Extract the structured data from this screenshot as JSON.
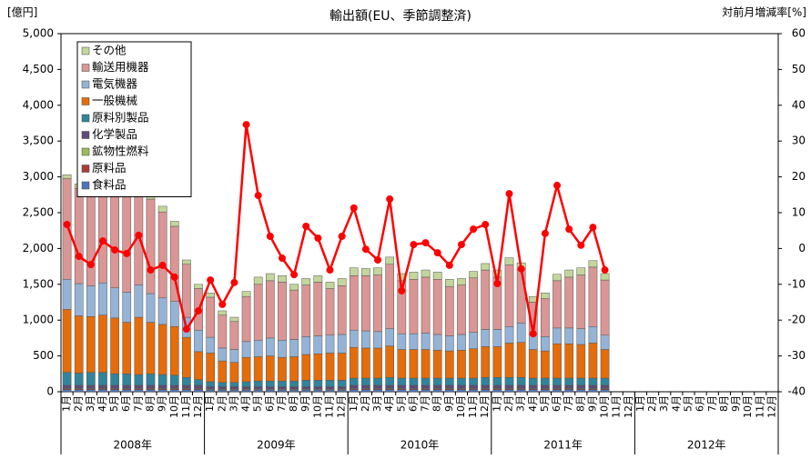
{
  "chart_data": {
    "type": "bar",
    "title": "輸出額(EU、季節調整済)",
    "y_label": "[億円]",
    "y2_label": "対前月増減率[%]",
    "stacked": true,
    "categories": [
      "1月",
      "2月",
      "3月",
      "4月",
      "5月",
      "6月",
      "7月",
      "8月",
      "9月",
      "10月",
      "11月",
      "12月",
      "1月",
      "2月",
      "3月",
      "4月",
      "5月",
      "6月",
      "7月",
      "8月",
      "9月",
      "10月",
      "11月",
      "12月",
      "1月",
      "2月",
      "3月",
      "4月",
      "5月",
      "6月",
      "7月",
      "8月",
      "9月",
      "10月",
      "11月",
      "12月",
      "1月",
      "2月",
      "3月",
      "4月",
      "5月",
      "6月",
      "7月",
      "8月",
      "9月",
      "10月",
      "11月",
      "12月",
      "1月",
      "2月",
      "3月",
      "4月",
      "5月",
      "6月",
      "7月",
      "8月",
      "9月",
      "10月",
      "11月",
      "12月"
    ],
    "year_groups": [
      "2008年",
      "2009年",
      "2010年",
      "2011年",
      "2012年"
    ],
    "ylim": [
      0,
      5000
    ],
    "yticks": [
      0,
      500,
      {
        "value": 1000,
        "label": "1,000"
      },
      {
        "value": 1500,
        "label": "1,500"
      },
      {
        "value": 2000,
        "label": "2,000"
      },
      {
        "value": 2500,
        "label": "2,500"
      },
      {
        "value": 3000,
        "label": "3,000"
      },
      {
        "value": 3500,
        "label": "3,500"
      },
      {
        "value": 4000,
        "label": "4,000"
      },
      {
        "value": 4500,
        "label": "4,500"
      },
      {
        "value": 5000,
        "label": "5,000"
      }
    ],
    "y2lim": [
      -40,
      60
    ],
    "y2ticks": [
      -40,
      -30,
      -20,
      -10,
      0,
      10,
      20,
      30,
      40,
      50,
      60
    ],
    "legend": "upper left",
    "series": [
      {
        "name": "食料品",
        "color": "#4f74c0",
        "values": [
          30,
          30,
          30,
          30,
          30,
          30,
          30,
          30,
          30,
          30,
          30,
          30,
          25,
          25,
          25,
          25,
          25,
          25,
          25,
          25,
          25,
          25,
          25,
          25,
          30,
          30,
          30,
          30,
          30,
          30,
          30,
          30,
          30,
          30,
          30,
          30,
          30,
          30,
          30,
          30,
          30,
          30,
          30,
          30,
          30,
          30,
          null,
          null,
          null,
          null,
          null,
          null,
          null,
          null,
          null,
          null,
          null,
          null,
          null,
          null
        ]
      },
      {
        "name": "原料品",
        "color": "#b03a3a",
        "values": [
          10,
          10,
          10,
          10,
          10,
          10,
          10,
          10,
          10,
          10,
          10,
          10,
          5,
          5,
          5,
          5,
          5,
          5,
          5,
          5,
          5,
          5,
          5,
          5,
          10,
          10,
          10,
          10,
          10,
          10,
          10,
          10,
          10,
          10,
          10,
          10,
          10,
          10,
          10,
          10,
          10,
          10,
          10,
          10,
          10,
          10,
          null,
          null,
          null,
          null,
          null,
          null,
          null,
          null,
          null,
          null,
          null,
          null,
          null,
          null
        ]
      },
      {
        "name": "鉱物性燃料",
        "color": "#9bbb59",
        "values": [
          10,
          10,
          10,
          10,
          10,
          10,
          10,
          10,
          10,
          10,
          10,
          10,
          10,
          10,
          10,
          10,
          10,
          10,
          10,
          10,
          10,
          10,
          10,
          10,
          10,
          10,
          10,
          10,
          10,
          10,
          10,
          10,
          10,
          10,
          10,
          10,
          10,
          10,
          10,
          10,
          10,
          10,
          10,
          10,
          10,
          10,
          null,
          null,
          null,
          null,
          null,
          null,
          null,
          null,
          null,
          null,
          null,
          null,
          null,
          null
        ]
      },
      {
        "name": "化学製品",
        "color": "#604a7b",
        "values": [
          40,
          40,
          40,
          40,
          40,
          40,
          40,
          40,
          40,
          40,
          40,
          40,
          30,
          30,
          30,
          30,
          30,
          30,
          30,
          30,
          30,
          30,
          30,
          30,
          40,
          40,
          40,
          40,
          40,
          40,
          40,
          40,
          40,
          40,
          40,
          40,
          40,
          40,
          40,
          40,
          40,
          40,
          40,
          40,
          40,
          40,
          null,
          null,
          null,
          null,
          null,
          null,
          null,
          null,
          null,
          null,
          null,
          null,
          null,
          null
        ]
      },
      {
        "name": "原料別製品",
        "color": "#31849b",
        "values": [
          180,
          170,
          180,
          180,
          160,
          160,
          150,
          160,
          150,
          140,
          110,
          80,
          70,
          60,
          60,
          70,
          80,
          80,
          80,
          80,
          90,
          90,
          90,
          90,
          100,
          100,
          100,
          110,
          100,
          100,
          100,
          100,
          100,
          100,
          100,
          110,
          110,
          110,
          110,
          100,
          100,
          100,
          100,
          100,
          100,
          100,
          null,
          null,
          null,
          null,
          null,
          null,
          null,
          null,
          null,
          null,
          null,
          null,
          null,
          null
        ]
      },
      {
        "name": "一般機械",
        "color": "#e46c0a",
        "values": [
          880,
          800,
          780,
          800,
          780,
          720,
          800,
          720,
          700,
          680,
          560,
          390,
          400,
          300,
          280,
          340,
          340,
          350,
          330,
          340,
          360,
          370,
          380,
          380,
          430,
          420,
          420,
          440,
          400,
          400,
          400,
          390,
          380,
          390,
          410,
          430,
          430,
          480,
          490,
          400,
          380,
          480,
          480,
          470,
          490,
          400,
          null,
          null,
          null,
          null,
          null,
          null,
          null,
          null,
          null,
          null,
          null,
          null,
          null,
          null
        ]
      },
      {
        "name": "電気機器",
        "color": "#95b3d7",
        "values": [
          420,
          450,
          430,
          450,
          420,
          420,
          450,
          400,
          370,
          350,
          280,
          300,
          220,
          180,
          180,
          220,
          230,
          250,
          240,
          240,
          250,
          250,
          250,
          260,
          240,
          240,
          230,
          240,
          220,
          220,
          230,
          220,
          210,
          220,
          230,
          240,
          240,
          230,
          270,
          200,
          200,
          220,
          220,
          220,
          230,
          200,
          null,
          null,
          null,
          null,
          null,
          null,
          null,
          null,
          null,
          null,
          null,
          null,
          null,
          null
        ]
      },
      {
        "name": "輸送用機器",
        "color": "#d99694",
        "values": [
          1410,
          1330,
          1330,
          1370,
          1370,
          1400,
          1400,
          1320,
          1200,
          1050,
          740,
          580,
          560,
          460,
          390,
          630,
          780,
          800,
          810,
          690,
          720,
          750,
          650,
          680,
          760,
          770,
          790,
          900,
          740,
          760,
          780,
          770,
          690,
          690,
          760,
          830,
          730,
          860,
          750,
          460,
          530,
          660,
          710,
          750,
          830,
          770,
          null,
          null,
          null,
          null,
          null,
          null,
          null,
          null,
          null,
          null,
          null,
          null,
          null,
          null
        ]
      },
      {
        "name": "その他",
        "color": "#c3d69b",
        "values": [
          50,
          60,
          60,
          60,
          60,
          60,
          60,
          60,
          80,
          70,
          60,
          60,
          60,
          60,
          60,
          70,
          100,
          100,
          90,
          80,
          90,
          90,
          90,
          100,
          110,
          100,
          100,
          100,
          100,
          100,
          100,
          100,
          100,
          90,
          90,
          90,
          100,
          100,
          90,
          80,
          80,
          90,
          100,
          100,
          90,
          90,
          null,
          null,
          null,
          null,
          null,
          null,
          null,
          null,
          null,
          null,
          null,
          null,
          null,
          null
        ]
      },
      {
        "type": "line",
        "axis": "y2",
        "color": "#ff0000",
        "values": [
          6.7,
          -2.2,
          -4.5,
          2.1,
          -0.4,
          -1.4,
          3.7,
          -6,
          -4.7,
          -8,
          -22.5,
          -17.4,
          -8.8,
          -15.6,
          -9.5,
          34.6,
          14.8,
          3.4,
          -2.7,
          -7.3,
          6.2,
          2.9,
          -6,
          3.4,
          11.3,
          -0.2,
          -3.2,
          13.8,
          -11.8,
          1.1,
          1.6,
          -1.2,
          -4.7,
          1.1,
          5.4,
          6.7,
          -9.8,
          15.3,
          -5.7,
          -23.8,
          4.2,
          17.6,
          5.4,
          0.9,
          5.9,
          -6,
          null,
          null,
          null,
          null,
          null,
          null,
          null,
          null,
          null,
          null,
          null,
          null,
          null,
          null
        ]
      }
    ]
  }
}
